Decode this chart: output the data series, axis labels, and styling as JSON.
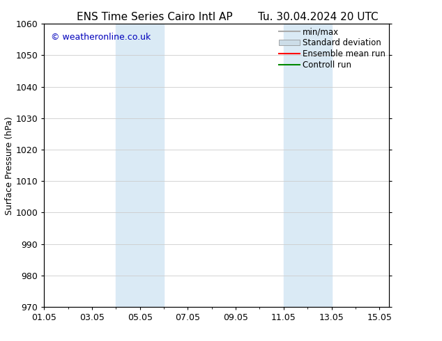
{
  "title_left": "ENS Time Series Cairo Intl AP",
  "title_right": "Tu. 30.04.2024 20 UTC",
  "ylabel": "Surface Pressure (hPa)",
  "ylim": [
    970,
    1060
  ],
  "yticks": [
    970,
    980,
    990,
    1000,
    1010,
    1020,
    1030,
    1040,
    1050,
    1060
  ],
  "xlim_start": 0.0,
  "xlim_end": 14.4,
  "xtick_labels": [
    "01.05",
    "03.05",
    "05.05",
    "07.05",
    "09.05",
    "11.05",
    "13.05",
    "15.05"
  ],
  "xtick_positions": [
    0,
    2,
    4,
    6,
    8,
    10,
    12,
    14
  ],
  "shaded_regions": [
    {
      "xmin": 3.0,
      "xmax": 5.0,
      "color": "#daeaf5"
    },
    {
      "xmin": 10.0,
      "xmax": 12.0,
      "color": "#daeaf5"
    }
  ],
  "watermark": "© weatheronline.co.uk",
  "watermark_color": "#0000bb",
  "background_color": "#ffffff",
  "plot_bg_color": "#ffffff",
  "grid_color": "#cccccc",
  "legend_items": [
    {
      "label": "min/max",
      "color": "#aaaaaa",
      "style": "line"
    },
    {
      "label": "Standard deviation",
      "color": "#ccdde8",
      "style": "box"
    },
    {
      "label": "Ensemble mean run",
      "color": "#ff0000",
      "style": "line"
    },
    {
      "label": "Controll run",
      "color": "#008800",
      "style": "line"
    }
  ],
  "title_fontsize": 11,
  "axis_fontsize": 9,
  "tick_fontsize": 9,
  "legend_fontsize": 8.5,
  "watermark_fontsize": 9
}
